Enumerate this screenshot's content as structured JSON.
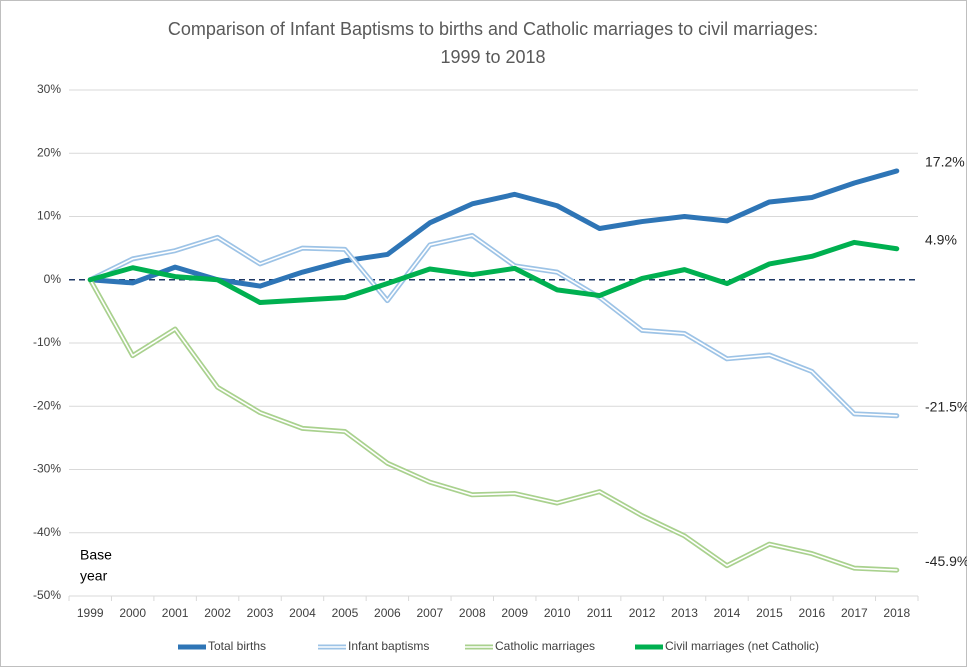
{
  "chart_data": {
    "type": "line",
    "title": [
      "Comparison of Infant Baptisms to births and Catholic marriages to civil marriages:",
      "1999 to 2018"
    ],
    "annotation": [
      "Base",
      "year"
    ],
    "categories": [
      "1999",
      "2000",
      "2001",
      "2002",
      "2003",
      "2004",
      "2005",
      "2006",
      "2007",
      "2008",
      "2009",
      "2010",
      "2011",
      "2012",
      "2013",
      "2014",
      "2015",
      "2016",
      "2017",
      "2018"
    ],
    "ylim": [
      -50,
      30
    ],
    "yticks": [
      {
        "value": -50,
        "label": "-50%"
      },
      {
        "value": -40,
        "label": "-40%"
      },
      {
        "value": -30,
        "label": "-30%"
      },
      {
        "value": -20,
        "label": "-20%"
      },
      {
        "value": -10,
        "label": "-10%"
      },
      {
        "value": 0,
        "label": "0%"
      },
      {
        "value": 10,
        "label": "10%"
      },
      {
        "value": 20,
        "label": "20%"
      },
      {
        "value": 30,
        "label": "30%"
      }
    ],
    "grid": true,
    "legend": "bottom",
    "series": [
      {
        "name": "Total births",
        "color": "#2e75b6",
        "style": "solid",
        "end_label": "17.2%",
        "values": [
          0,
          -0.5,
          2,
          0,
          -1,
          1.2,
          3,
          4,
          9,
          12,
          13.5,
          11.7,
          8.1,
          9.2,
          10,
          9.3,
          12.3,
          13,
          15.3,
          17.2
        ]
      },
      {
        "name": "Infant baptisms",
        "color": "#9dc3e6",
        "style": "outline",
        "end_label": "-21.5%",
        "values": [
          0,
          3.3,
          4.6,
          6.7,
          2.5,
          5,
          4.8,
          -3.3,
          5.5,
          7,
          2.2,
          1.2,
          -2.8,
          -8,
          -8.5,
          -12.5,
          -11.9,
          -14.5,
          -21.2,
          -21.5
        ]
      },
      {
        "name": "Catholic marriages",
        "color": "#a9d18e",
        "style": "outline",
        "end_label": "-45.9%",
        "values": [
          0,
          -12,
          -7.8,
          -17,
          -21,
          -23.5,
          -24,
          -29,
          -32,
          -34,
          -33.8,
          -35.3,
          -33.5,
          -37.3,
          -40.5,
          -45.2,
          -41.8,
          -43.3,
          -45.6,
          -45.9
        ]
      },
      {
        "name": "Civil marriages (net Catholic)",
        "color": "#00b050",
        "style": "solid",
        "end_label": "4.9%",
        "values": [
          0,
          1.9,
          0.5,
          0,
          -3.6,
          -3.2,
          -2.8,
          -0.6,
          1.7,
          0.8,
          1.8,
          -1.6,
          -2.5,
          0.2,
          1.6,
          -0.6,
          2.5,
          3.7,
          5.9,
          4.9
        ]
      }
    ]
  }
}
